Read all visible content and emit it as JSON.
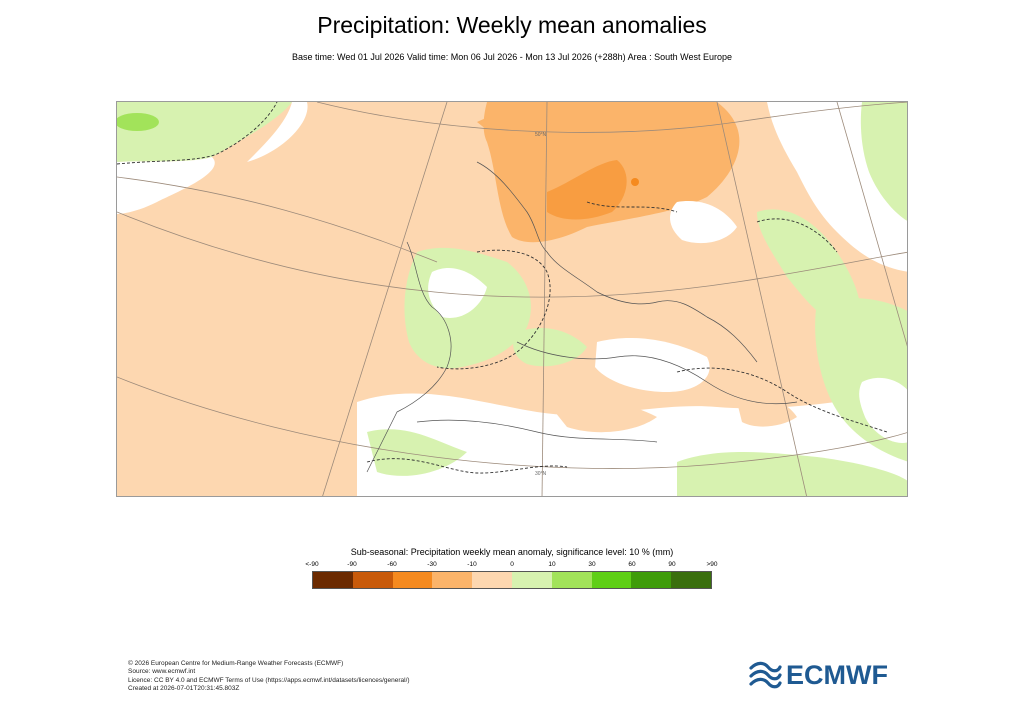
{
  "title": "Precipitation: Weekly mean anomalies",
  "subtitle": "Base time: Wed 01 Jul 2026 Valid time: Mon 06 Jul 2026 - Mon 13 Jul 2026 (+288h) Area : South West Europe",
  "map": {
    "region": "South West Europe",
    "parallel_labels": [
      "50°N",
      "30°N"
    ]
  },
  "legend": {
    "title": "Sub-seasonal: Precipitation weekly mean anomaly, significance level: 10 % (mm)",
    "ticks": [
      "<-90",
      "-90",
      "-60",
      "-30",
      "-10",
      "0",
      "10",
      "30",
      "60",
      "90",
      ">90"
    ],
    "colors": [
      "#6b2a00",
      "#c85a0a",
      "#f58a1f",
      "#fbb46a",
      "#fdd7b0",
      "#d7f2b0",
      "#a2e35a",
      "#5fcf16",
      "#3f9c0a",
      "#3a6f0e"
    ]
  },
  "footer": {
    "line1": "© 2026 European Centre for Medium-Range Weather Forecasts (ECMWF)",
    "line2": "Source: www.ecmwf.int",
    "line3": "Licence: CC BY 4.0 and ECMWF Terms of Use (https://apps.ecmwf.int/datasets/licences/general/)",
    "line4": "Created at 2026-07-01T20:31:45.803Z"
  },
  "logo": {
    "text": "ECMWF",
    "color": "#1f5a92"
  }
}
